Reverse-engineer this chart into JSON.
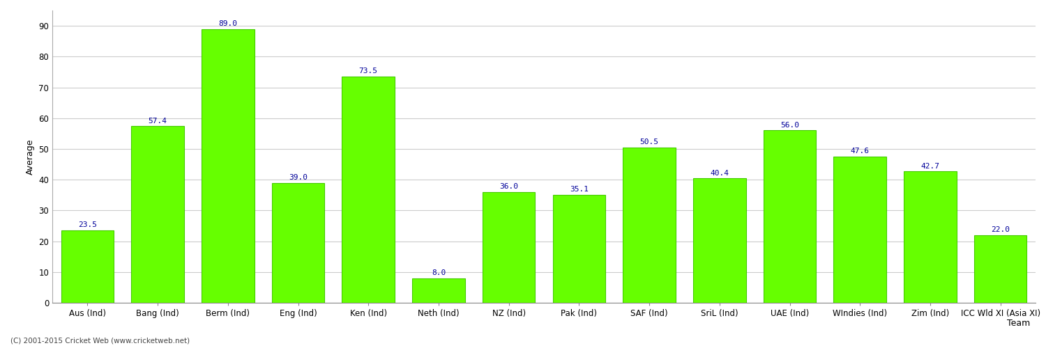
{
  "categories": [
    "Aus (Ind)",
    "Bang (Ind)",
    "Berm (Ind)",
    "Eng (Ind)",
    "Ken (Ind)",
    "Neth (Ind)",
    "NZ (Ind)",
    "Pak (Ind)",
    "SAF (Ind)",
    "SriL (Ind)",
    "UAE (Ind)",
    "WIndies (Ind)",
    "Zim (Ind)",
    "ICC Wld XI (Asia XI)"
  ],
  "values": [
    23.5,
    57.4,
    89.0,
    39.0,
    73.5,
    8.0,
    36.0,
    35.1,
    50.5,
    40.4,
    56.0,
    47.6,
    42.7,
    22.0
  ],
  "bar_color": "#66ff00",
  "bar_edgecolor": "#44cc00",
  "label_color": "#000099",
  "xlabel": "Team",
  "ylabel": "Average",
  "ylim": [
    0,
    95
  ],
  "yticks": [
    0,
    10,
    20,
    30,
    40,
    50,
    60,
    70,
    80,
    90
  ],
  "grid_color": "#cccccc",
  "bg_color": "#ffffff",
  "footer": "(C) 2001-2015 Cricket Web (www.cricketweb.net)",
  "axis_label_fontsize": 9,
  "tick_fontsize": 8.5,
  "value_fontsize": 8
}
